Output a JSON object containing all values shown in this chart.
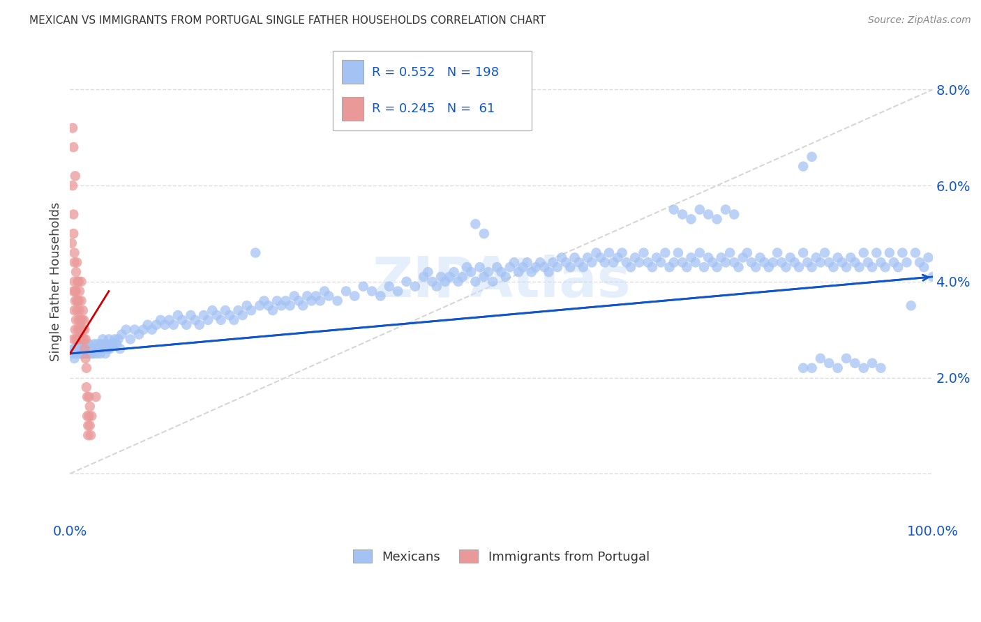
{
  "title": "MEXICAN VS IMMIGRANTS FROM PORTUGAL SINGLE FATHER HOUSEHOLDS CORRELATION CHART",
  "source": "Source: ZipAtlas.com",
  "ylabel": "Single Father Households",
  "xlim": [
    0,
    1.0
  ],
  "ylim": [
    -0.01,
    0.09
  ],
  "yticks": [
    0.0,
    0.02,
    0.04,
    0.06,
    0.08
  ],
  "ytick_labels": [
    "",
    "2.0%",
    "4.0%",
    "6.0%",
    "8.0%"
  ],
  "xticks": [
    0.0,
    0.25,
    0.5,
    0.75,
    1.0
  ],
  "xtick_labels": [
    "0.0%",
    "",
    "",
    "",
    "100.0%"
  ],
  "color_blue": "#a4c2f4",
  "color_pink": "#ea9999",
  "line_color_blue": "#1155cc",
  "line_color_pink": "#cc0000",
  "diag_color": "#cccccc",
  "legend_R_blue": "0.552",
  "legend_N_blue": "198",
  "legend_R_pink": "0.245",
  "legend_N_pink": " 61",
  "watermark": "ZIPAtlas",
  "title_color": "#333333",
  "axis_label_color": "#1155cc",
  "blue_line_x0": 0.0,
  "blue_line_y0": 0.025,
  "blue_line_x1": 1.0,
  "blue_line_y1": 0.041,
  "pink_line_x0": 0.0,
  "pink_line_y0": 0.025,
  "pink_line_x1": 0.045,
  "pink_line_y1": 0.038,
  "blue_scatter": [
    [
      0.003,
      0.025
    ],
    [
      0.004,
      0.026
    ],
    [
      0.005,
      0.024
    ],
    [
      0.006,
      0.026
    ],
    [
      0.007,
      0.025
    ],
    [
      0.008,
      0.026
    ],
    [
      0.009,
      0.025
    ],
    [
      0.01,
      0.027
    ],
    [
      0.011,
      0.026
    ],
    [
      0.012,
      0.025
    ],
    [
      0.013,
      0.026
    ],
    [
      0.014,
      0.025
    ],
    [
      0.015,
      0.026
    ],
    [
      0.016,
      0.025
    ],
    [
      0.017,
      0.027
    ],
    [
      0.018,
      0.026
    ],
    [
      0.019,
      0.025
    ],
    [
      0.02,
      0.026
    ],
    [
      0.021,
      0.025
    ],
    [
      0.022,
      0.027
    ],
    [
      0.023,
      0.026
    ],
    [
      0.025,
      0.025
    ],
    [
      0.026,
      0.026
    ],
    [
      0.027,
      0.025
    ],
    [
      0.028,
      0.027
    ],
    [
      0.03,
      0.026
    ],
    [
      0.031,
      0.025
    ],
    [
      0.032,
      0.027
    ],
    [
      0.033,
      0.026
    ],
    [
      0.035,
      0.025
    ],
    [
      0.036,
      0.027
    ],
    [
      0.037,
      0.026
    ],
    [
      0.038,
      0.028
    ],
    [
      0.04,
      0.026
    ],
    [
      0.041,
      0.025
    ],
    [
      0.042,
      0.027
    ],
    [
      0.044,
      0.026
    ],
    [
      0.045,
      0.028
    ],
    [
      0.046,
      0.026
    ],
    [
      0.048,
      0.027
    ],
    [
      0.05,
      0.027
    ],
    [
      0.052,
      0.028
    ],
    [
      0.054,
      0.027
    ],
    [
      0.056,
      0.028
    ],
    [
      0.058,
      0.026
    ],
    [
      0.06,
      0.029
    ],
    [
      0.065,
      0.03
    ],
    [
      0.07,
      0.028
    ],
    [
      0.075,
      0.03
    ],
    [
      0.08,
      0.029
    ],
    [
      0.085,
      0.03
    ],
    [
      0.09,
      0.031
    ],
    [
      0.095,
      0.03
    ],
    [
      0.1,
      0.031
    ],
    [
      0.105,
      0.032
    ],
    [
      0.11,
      0.031
    ],
    [
      0.115,
      0.032
    ],
    [
      0.12,
      0.031
    ],
    [
      0.125,
      0.033
    ],
    [
      0.13,
      0.032
    ],
    [
      0.135,
      0.031
    ],
    [
      0.14,
      0.033
    ],
    [
      0.145,
      0.032
    ],
    [
      0.15,
      0.031
    ],
    [
      0.155,
      0.033
    ],
    [
      0.16,
      0.032
    ],
    [
      0.165,
      0.034
    ],
    [
      0.17,
      0.033
    ],
    [
      0.175,
      0.032
    ],
    [
      0.18,
      0.034
    ],
    [
      0.185,
      0.033
    ],
    [
      0.19,
      0.032
    ],
    [
      0.195,
      0.034
    ],
    [
      0.2,
      0.033
    ],
    [
      0.205,
      0.035
    ],
    [
      0.21,
      0.034
    ],
    [
      0.215,
      0.046
    ],
    [
      0.22,
      0.035
    ],
    [
      0.225,
      0.036
    ],
    [
      0.23,
      0.035
    ],
    [
      0.235,
      0.034
    ],
    [
      0.24,
      0.036
    ],
    [
      0.245,
      0.035
    ],
    [
      0.25,
      0.036
    ],
    [
      0.255,
      0.035
    ],
    [
      0.26,
      0.037
    ],
    [
      0.265,
      0.036
    ],
    [
      0.27,
      0.035
    ],
    [
      0.275,
      0.037
    ],
    [
      0.28,
      0.036
    ],
    [
      0.285,
      0.037
    ],
    [
      0.29,
      0.036
    ],
    [
      0.295,
      0.038
    ],
    [
      0.3,
      0.037
    ],
    [
      0.31,
      0.036
    ],
    [
      0.32,
      0.038
    ],
    [
      0.33,
      0.037
    ],
    [
      0.34,
      0.039
    ],
    [
      0.35,
      0.038
    ],
    [
      0.36,
      0.037
    ],
    [
      0.37,
      0.039
    ],
    [
      0.38,
      0.038
    ],
    [
      0.39,
      0.04
    ],
    [
      0.4,
      0.039
    ],
    [
      0.41,
      0.041
    ],
    [
      0.415,
      0.042
    ],
    [
      0.42,
      0.04
    ],
    [
      0.425,
      0.039
    ],
    [
      0.43,
      0.041
    ],
    [
      0.435,
      0.04
    ],
    [
      0.44,
      0.041
    ],
    [
      0.445,
      0.042
    ],
    [
      0.45,
      0.04
    ],
    [
      0.455,
      0.041
    ],
    [
      0.46,
      0.043
    ],
    [
      0.465,
      0.042
    ],
    [
      0.47,
      0.04
    ],
    [
      0.475,
      0.043
    ],
    [
      0.48,
      0.041
    ],
    [
      0.485,
      0.042
    ],
    [
      0.49,
      0.04
    ],
    [
      0.495,
      0.043
    ],
    [
      0.5,
      0.042
    ],
    [
      0.505,
      0.041
    ],
    [
      0.51,
      0.043
    ],
    [
      0.515,
      0.044
    ],
    [
      0.52,
      0.042
    ],
    [
      0.525,
      0.043
    ],
    [
      0.53,
      0.044
    ],
    [
      0.535,
      0.042
    ],
    [
      0.54,
      0.043
    ],
    [
      0.545,
      0.044
    ],
    [
      0.55,
      0.043
    ],
    [
      0.555,
      0.042
    ],
    [
      0.56,
      0.044
    ],
    [
      0.565,
      0.043
    ],
    [
      0.57,
      0.045
    ],
    [
      0.575,
      0.044
    ],
    [
      0.58,
      0.043
    ],
    [
      0.585,
      0.045
    ],
    [
      0.59,
      0.044
    ],
    [
      0.595,
      0.043
    ],
    [
      0.6,
      0.045
    ],
    [
      0.605,
      0.044
    ],
    [
      0.61,
      0.046
    ],
    [
      0.615,
      0.045
    ],
    [
      0.62,
      0.044
    ],
    [
      0.625,
      0.046
    ],
    [
      0.63,
      0.044
    ],
    [
      0.635,
      0.045
    ],
    [
      0.64,
      0.046
    ],
    [
      0.645,
      0.044
    ],
    [
      0.65,
      0.043
    ],
    [
      0.655,
      0.045
    ],
    [
      0.66,
      0.044
    ],
    [
      0.665,
      0.046
    ],
    [
      0.67,
      0.044
    ],
    [
      0.675,
      0.043
    ],
    [
      0.68,
      0.045
    ],
    [
      0.685,
      0.044
    ],
    [
      0.69,
      0.046
    ],
    [
      0.695,
      0.043
    ],
    [
      0.7,
      0.044
    ],
    [
      0.705,
      0.046
    ],
    [
      0.71,
      0.044
    ],
    [
      0.715,
      0.043
    ],
    [
      0.72,
      0.045
    ],
    [
      0.725,
      0.044
    ],
    [
      0.73,
      0.046
    ],
    [
      0.735,
      0.043
    ],
    [
      0.74,
      0.045
    ],
    [
      0.745,
      0.044
    ],
    [
      0.75,
      0.043
    ],
    [
      0.755,
      0.045
    ],
    [
      0.76,
      0.044
    ],
    [
      0.765,
      0.046
    ],
    [
      0.77,
      0.044
    ],
    [
      0.775,
      0.043
    ],
    [
      0.78,
      0.045
    ],
    [
      0.785,
      0.046
    ],
    [
      0.79,
      0.044
    ],
    [
      0.795,
      0.043
    ],
    [
      0.8,
      0.045
    ],
    [
      0.805,
      0.044
    ],
    [
      0.81,
      0.043
    ],
    [
      0.815,
      0.044
    ],
    [
      0.82,
      0.046
    ],
    [
      0.825,
      0.044
    ],
    [
      0.83,
      0.043
    ],
    [
      0.835,
      0.045
    ],
    [
      0.84,
      0.044
    ],
    [
      0.845,
      0.043
    ],
    [
      0.85,
      0.046
    ],
    [
      0.855,
      0.044
    ],
    [
      0.86,
      0.043
    ],
    [
      0.865,
      0.045
    ],
    [
      0.87,
      0.044
    ],
    [
      0.875,
      0.046
    ],
    [
      0.88,
      0.044
    ],
    [
      0.885,
      0.043
    ],
    [
      0.89,
      0.045
    ],
    [
      0.895,
      0.044
    ],
    [
      0.9,
      0.043
    ],
    [
      0.905,
      0.045
    ],
    [
      0.91,
      0.044
    ],
    [
      0.915,
      0.043
    ],
    [
      0.92,
      0.046
    ],
    [
      0.925,
      0.044
    ],
    [
      0.93,
      0.043
    ],
    [
      0.935,
      0.046
    ],
    [
      0.94,
      0.044
    ],
    [
      0.945,
      0.043
    ],
    [
      0.95,
      0.046
    ],
    [
      0.955,
      0.044
    ],
    [
      0.96,
      0.043
    ],
    [
      0.965,
      0.046
    ],
    [
      0.97,
      0.044
    ],
    [
      0.975,
      0.035
    ],
    [
      0.98,
      0.046
    ],
    [
      0.985,
      0.044
    ],
    [
      0.99,
      0.043
    ],
    [
      0.995,
      0.045
    ],
    [
      1.0,
      0.041
    ],
    [
      0.85,
      0.022
    ],
    [
      0.86,
      0.022
    ],
    [
      0.87,
      0.024
    ],
    [
      0.88,
      0.023
    ],
    [
      0.89,
      0.022
    ],
    [
      0.9,
      0.024
    ],
    [
      0.91,
      0.023
    ],
    [
      0.92,
      0.022
    ],
    [
      0.93,
      0.023
    ],
    [
      0.94,
      0.022
    ],
    [
      0.85,
      0.064
    ],
    [
      0.86,
      0.066
    ],
    [
      0.47,
      0.052
    ],
    [
      0.48,
      0.05
    ],
    [
      0.7,
      0.055
    ],
    [
      0.71,
      0.054
    ],
    [
      0.72,
      0.053
    ],
    [
      0.73,
      0.055
    ],
    [
      0.74,
      0.054
    ],
    [
      0.75,
      0.053
    ],
    [
      0.76,
      0.055
    ],
    [
      0.77,
      0.054
    ]
  ],
  "pink_scatter": [
    [
      0.002,
      0.048
    ],
    [
      0.003,
      0.06
    ],
    [
      0.004,
      0.054
    ],
    [
      0.004,
      0.038
    ],
    [
      0.004,
      0.028
    ],
    [
      0.004,
      0.05
    ],
    [
      0.005,
      0.034
    ],
    [
      0.005,
      0.04
    ],
    [
      0.005,
      0.046
    ],
    [
      0.005,
      0.044
    ],
    [
      0.006,
      0.038
    ],
    [
      0.006,
      0.03
    ],
    [
      0.006,
      0.036
    ],
    [
      0.007,
      0.042
    ],
    [
      0.007,
      0.032
    ],
    [
      0.007,
      0.028
    ],
    [
      0.007,
      0.038
    ],
    [
      0.008,
      0.044
    ],
    [
      0.008,
      0.034
    ],
    [
      0.008,
      0.028
    ],
    [
      0.008,
      0.036
    ],
    [
      0.009,
      0.03
    ],
    [
      0.009,
      0.036
    ],
    [
      0.009,
      0.04
    ],
    [
      0.01,
      0.032
    ],
    [
      0.01,
      0.028
    ],
    [
      0.01,
      0.036
    ],
    [
      0.01,
      0.04
    ],
    [
      0.011,
      0.03
    ],
    [
      0.011,
      0.034
    ],
    [
      0.011,
      0.038
    ],
    [
      0.012,
      0.028
    ],
    [
      0.012,
      0.032
    ],
    [
      0.013,
      0.036
    ],
    [
      0.013,
      0.03
    ],
    [
      0.013,
      0.04
    ],
    [
      0.014,
      0.032
    ],
    [
      0.014,
      0.028
    ],
    [
      0.015,
      0.034
    ],
    [
      0.015,
      0.03
    ],
    [
      0.016,
      0.028
    ],
    [
      0.016,
      0.032
    ],
    [
      0.017,
      0.03
    ],
    [
      0.017,
      0.026
    ],
    [
      0.018,
      0.028
    ],
    [
      0.018,
      0.024
    ],
    [
      0.019,
      0.022
    ],
    [
      0.019,
      0.018
    ],
    [
      0.02,
      0.016
    ],
    [
      0.02,
      0.012
    ],
    [
      0.021,
      0.01
    ],
    [
      0.021,
      0.008
    ],
    [
      0.022,
      0.012
    ],
    [
      0.022,
      0.016
    ],
    [
      0.023,
      0.01
    ],
    [
      0.023,
      0.014
    ],
    [
      0.024,
      0.008
    ],
    [
      0.025,
      0.012
    ],
    [
      0.03,
      0.016
    ],
    [
      0.003,
      0.072
    ],
    [
      0.004,
      0.068
    ],
    [
      0.006,
      0.062
    ]
  ]
}
